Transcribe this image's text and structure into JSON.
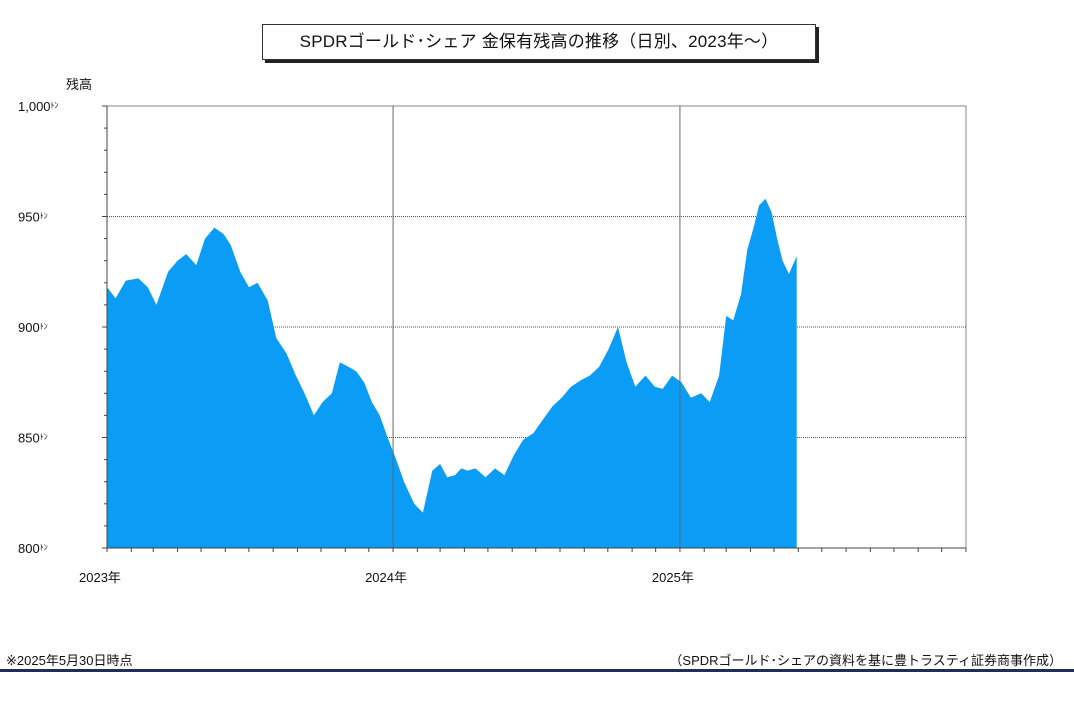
{
  "chart_data": {
    "type": "area",
    "title": "SPDRゴールド･シェア 金保有残高の推移（日別、2023年～）",
    "ylabel": "残高",
    "xlabel": "",
    "ylim": [
      800,
      1000
    ],
    "x_range": [
      "2023-01-01",
      "2026-01-01"
    ],
    "y_ticks": [
      1000,
      950,
      900,
      850,
      800
    ],
    "y_tick_labels": [
      "1,000",
      "950",
      "900",
      "850",
      "800"
    ],
    "y_unit": "ﾄﾝ",
    "x_tick_labels": [
      {
        "x": "2023-01-01",
        "label": "2023年"
      },
      {
        "x": "2024-01-01",
        "label": "2024年"
      },
      {
        "x": "2025-01-01",
        "label": "2025年"
      }
    ],
    "grid": "horizontal dotted at 850/900/950, vertical solid at year boundaries",
    "area_color": "#0b9cf5",
    "series": [
      {
        "x": [
          "2023-01-01",
          "2023-01-12",
          "2023-01-25",
          "2023-02-10",
          "2023-02-22",
          "2023-03-05",
          "2023-03-20",
          "2023-04-01",
          "2023-04-12",
          "2023-04-25",
          "2023-05-06",
          "2023-05-18",
          "2023-05-30",
          "2023-06-08",
          "2023-06-20",
          "2023-07-01",
          "2023-07-12",
          "2023-07-25",
          "2023-08-05",
          "2023-08-18",
          "2023-08-30",
          "2023-09-10",
          "2023-09-22",
          "2023-10-03",
          "2023-10-15",
          "2023-10-25",
          "2023-11-05",
          "2023-11-15",
          "2023-11-25",
          "2023-12-05",
          "2023-12-15",
          "2023-12-25",
          "2024-01-05",
          "2024-01-15",
          "2024-01-28",
          "2024-02-08",
          "2024-02-20",
          "2024-03-01",
          "2024-03-10",
          "2024-03-20",
          "2024-03-28",
          "2024-04-05",
          "2024-04-15",
          "2024-04-28",
          "2024-05-10",
          "2024-05-22",
          "2024-06-03",
          "2024-06-15",
          "2024-06-28",
          "2024-07-10",
          "2024-07-22",
          "2024-08-03",
          "2024-08-15",
          "2024-08-28",
          "2024-09-08",
          "2024-09-20",
          "2024-10-02",
          "2024-10-14",
          "2024-10-25",
          "2024-11-05",
          "2024-11-18",
          "2024-11-30",
          "2024-12-10",
          "2024-12-22",
          "2025-01-03",
          "2025-01-15",
          "2025-01-28",
          "2025-02-08",
          "2025-02-20",
          "2025-03-01",
          "2025-03-10",
          "2025-03-20",
          "2025-03-28",
          "2025-04-05",
          "2025-04-12",
          "2025-04-20",
          "2025-04-28",
          "2025-05-05",
          "2025-05-12",
          "2025-05-20",
          "2025-05-30"
        ],
        "values": [
          918,
          913,
          921,
          922,
          918,
          910,
          925,
          930,
          933,
          928,
          940,
          945,
          942,
          937,
          925,
          918,
          920,
          912,
          895,
          888,
          878,
          870,
          860,
          866,
          870,
          884,
          882,
          880,
          875,
          866,
          860,
          850,
          840,
          830,
          820,
          816,
          835,
          838,
          832,
          833,
          836,
          835,
          836,
          832,
          836,
          833,
          842,
          849,
          852,
          858,
          864,
          868,
          873,
          876,
          878,
          882,
          890,
          900,
          884,
          873,
          878,
          873,
          872,
          878,
          875,
          868,
          870,
          866,
          878,
          905,
          903,
          915,
          935,
          945,
          955,
          958,
          952,
          940,
          930,
          924,
          932
        ]
      }
    ]
  },
  "footnote": "※2025年5月30日時点",
  "source": "（SPDRゴールド･シェアの資料を基に豊トラスティ証券商事作成）"
}
